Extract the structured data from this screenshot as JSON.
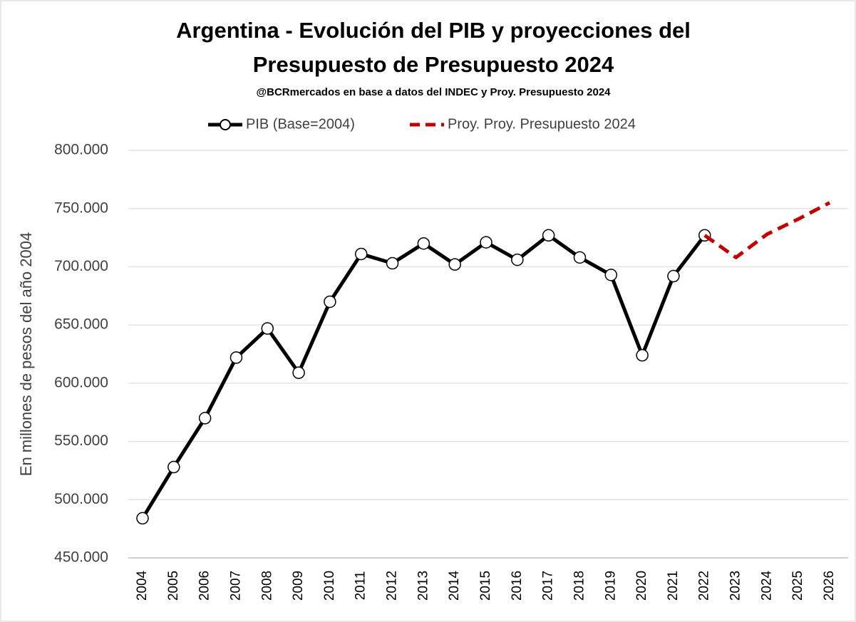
{
  "chart_data": {
    "type": "line",
    "title": [
      "Argentina - Evolución del PIB y proyecciones del",
      "Presupuesto de Presupuesto 2024"
    ],
    "subtitle": "@BCRmercados en base a datos del INDEC y Proy. Presupuesto 2024",
    "y_label": "En millones de pesos del año 2004",
    "categories": [
      "2004",
      "2005",
      "2006",
      "2007",
      "2008",
      "2009",
      "2010",
      "2011",
      "2012",
      "2013",
      "2014",
      "2015",
      "2016",
      "2017",
      "2018",
      "2019",
      "2020",
      "2021",
      "2022",
      "2023",
      "2024",
      "2025",
      "2026"
    ],
    "series": [
      {
        "name": "PIB (Base=2004)",
        "color": "#000000",
        "dash": false,
        "markers": true,
        "values": [
          484000,
          528000,
          570000,
          622000,
          647000,
          609000,
          670000,
          711000,
          703000,
          720000,
          702000,
          721000,
          706000,
          727000,
          708000,
          693000,
          624000,
          692000,
          727000,
          null,
          null,
          null,
          null
        ]
      },
      {
        "name": "Proy. Proy. Presupuesto 2024",
        "color": "#c00000",
        "dash": true,
        "markers": false,
        "values": [
          null,
          null,
          null,
          null,
          null,
          null,
          null,
          null,
          null,
          null,
          null,
          null,
          null,
          null,
          null,
          null,
          null,
          null,
          727000,
          708000,
          728000,
          741000,
          755000
        ]
      }
    ],
    "ylim": [
      450000,
      800000
    ],
    "yticks": [
      {
        "value": 450000,
        "label": "450.000"
      },
      {
        "value": 500000,
        "label": "500.000"
      },
      {
        "value": 550000,
        "label": "550.000"
      },
      {
        "value": 600000,
        "label": "600.000"
      },
      {
        "value": 650000,
        "label": "650.000"
      },
      {
        "value": 700000,
        "label": "700.000"
      },
      {
        "value": 750000,
        "label": "750.000"
      },
      {
        "value": 800000,
        "label": "800.000"
      }
    ],
    "grid": true,
    "legend": "top"
  }
}
